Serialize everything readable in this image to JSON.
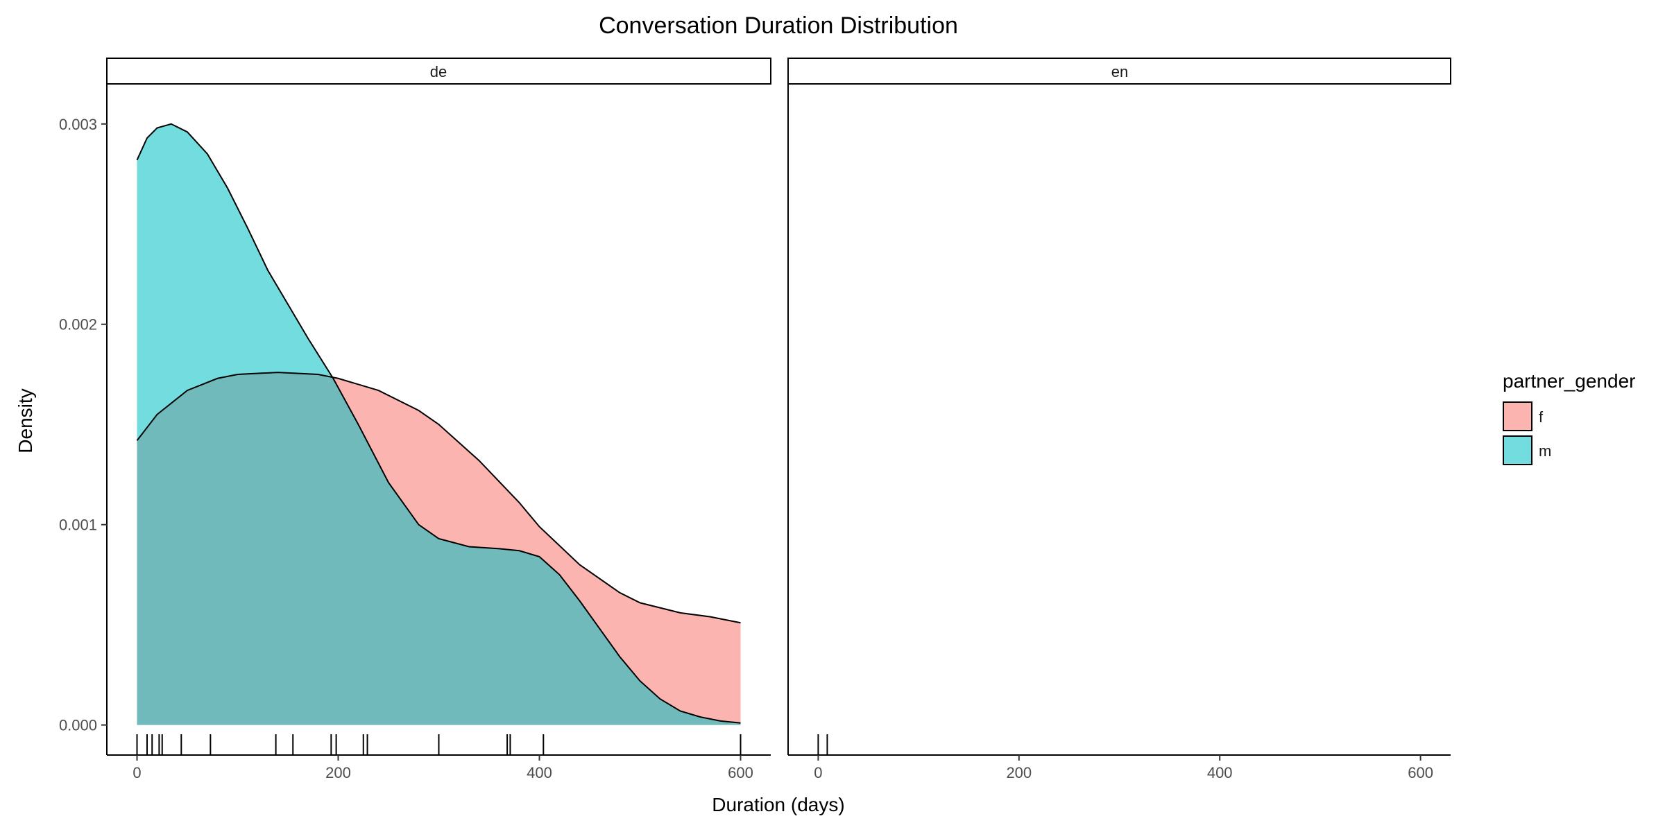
{
  "chart_data": {
    "type": "area",
    "subtype": "density",
    "title": "Conversation Duration Distribution",
    "xlabel": "Duration (days)",
    "ylabel": "Density",
    "legend": {
      "title": "partner_gender",
      "placement": "right",
      "entries": [
        {
          "label": "f",
          "color": "#F8766D"
        },
        {
          "label": "m",
          "color": "#00BFC4"
        }
      ]
    },
    "fill_alpha": 0.55,
    "grid": false,
    "facets": [
      {
        "label": "de",
        "xlim": [
          -30,
          630
        ],
        "ylim": [
          -0.00015,
          0.0032
        ],
        "xticks": [
          0,
          200,
          400,
          600
        ],
        "yticks": [
          {
            "value": 0.0,
            "label": "0.000"
          },
          {
            "value": 0.001,
            "label": "0.001"
          },
          {
            "value": 0.002,
            "label": "0.002"
          },
          {
            "value": 0.003,
            "label": "0.003"
          }
        ],
        "series": [
          {
            "name": "f",
            "x": [
              0,
              20,
              50,
              80,
              100,
              140,
              180,
              200,
              240,
              280,
              300,
              340,
              380,
              400,
              440,
              480,
              500,
              540,
              570,
              600
            ],
            "y": [
              0.00142,
              0.00155,
              0.00167,
              0.00173,
              0.00175,
              0.00176,
              0.00175,
              0.00173,
              0.00167,
              0.00157,
              0.0015,
              0.00132,
              0.00111,
              0.00099,
              0.0008,
              0.00066,
              0.00061,
              0.00056,
              0.00054,
              0.00051
            ]
          },
          {
            "name": "m",
            "x": [
              0,
              10,
              20,
              34,
              50,
              70,
              90,
              110,
              130,
              150,
              170,
              195,
              220,
              250,
              280,
              300,
              330,
              360,
              380,
              400,
              420,
              440,
              460,
              480,
              500,
              520,
              540,
              560,
              580,
              600
            ],
            "y": [
              0.00282,
              0.00293,
              0.00298,
              0.003,
              0.00296,
              0.00285,
              0.00268,
              0.00248,
              0.00227,
              0.0021,
              0.00193,
              0.00173,
              0.0015,
              0.00121,
              0.001,
              0.00093,
              0.00089,
              0.00088,
              0.00087,
              0.00084,
              0.00075,
              0.00062,
              0.00048,
              0.00034,
              0.00022,
              0.00013,
              7e-05,
              4e-05,
              2e-05,
              1e-05
            ]
          }
        ],
        "rug": [
          0,
          10,
          15,
          22,
          25,
          44,
          73,
          138,
          155,
          193,
          198,
          225,
          229,
          300,
          368,
          371,
          404,
          600
        ]
      },
      {
        "label": "en",
        "xlim": [
          -30,
          630
        ],
        "ylim": [
          -0.00015,
          0.0032
        ],
        "xticks": [
          0,
          200,
          400,
          600
        ],
        "series": [],
        "rug": [
          0,
          9
        ]
      }
    ]
  }
}
